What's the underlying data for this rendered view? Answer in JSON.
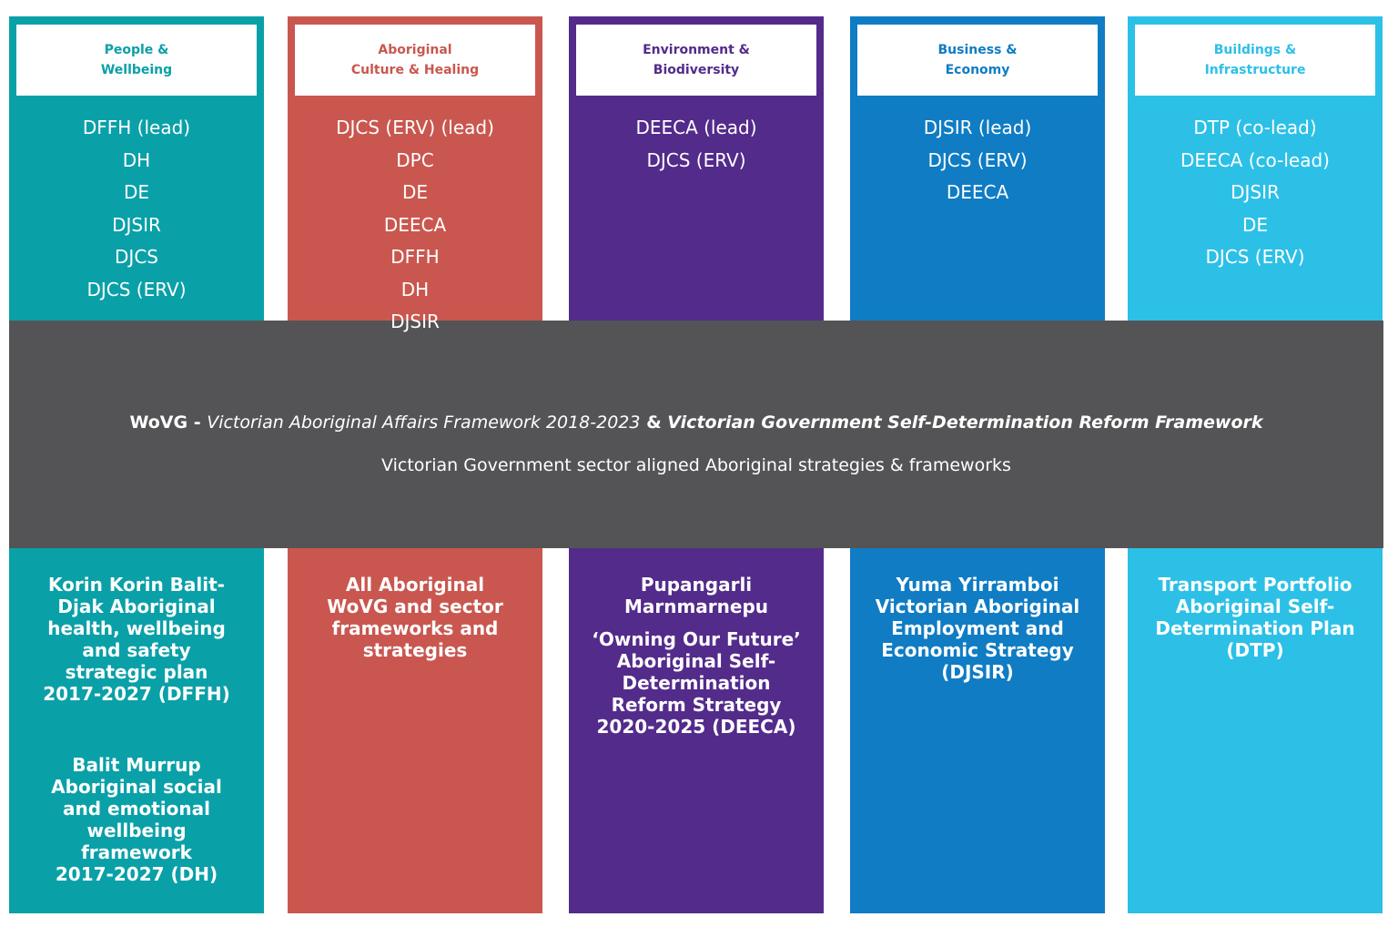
{
  "columns": [
    {
      "header": [
        "People &",
        "Wellbeing"
      ],
      "departments": [
        "DFFH (lead)",
        "DH",
        "DE",
        "DJSIR",
        "DJCS",
        "DJCS (ERV)"
      ],
      "strategies": [
        [
          "Korin Korin Balit-",
          "Djak Aboriginal",
          "health, wellbeing",
          "and safety",
          "strategic plan",
          "2017-2027 (DFFH)"
        ],
        [
          "Balit Murrup",
          "Aboriginal social",
          "and emotional",
          "wellbeing",
          "framework",
          "2017-2027 (DH)"
        ]
      ]
    },
    {
      "header": [
        "Aboriginal",
        "Culture & Healing"
      ],
      "departments": [
        "DJCS (ERV) (lead)",
        "DPC",
        "DE",
        "DEECA",
        "DFFH",
        "DH",
        "DJSIR"
      ],
      "strategies": [
        [
          "All Aboriginal",
          "WoVG and sector",
          "frameworks and",
          "strategies"
        ]
      ]
    },
    {
      "header": [
        "Environment &",
        "Biodiversity"
      ],
      "departments": [
        "DEECA (lead)",
        "DJCS (ERV)"
      ],
      "strategies": [
        [
          "Pupangarli",
          "Marnmarnepu"
        ],
        [
          "‘Owning Our Future’",
          "Aboriginal Self-",
          "Determination",
          "Reform Strategy",
          "2020-2025 (DEECA)"
        ]
      ]
    },
    {
      "header": [
        "Business &",
        "Economy"
      ],
      "departments": [
        "DJSIR (lead)",
        "DJCS (ERV)",
        "DEECA"
      ],
      "strategies": [
        [
          "Yuma Yirramboi",
          "Victorian Aboriginal",
          "Employment and",
          "Economic Strategy",
          "(DJSIR)"
        ]
      ]
    },
    {
      "header": [
        "Buildings &",
        "Infrastructure"
      ],
      "departments": [
        "DTP (co-lead)",
        "DEECA (co-lead)",
        "DJSIR",
        "DE",
        "DJCS (ERV)"
      ],
      "strategies": [
        [
          "Transport Portfolio",
          "Aboriginal Self-",
          "Determination Plan",
          "(DTP)"
        ]
      ]
    }
  ],
  "band": {
    "prefix": "WoVG - ",
    "framework_1": "Victorian Aboriginal Affairs Framework 2018-2023",
    "joiner": " & ",
    "framework_2": "Victorian Government Self-Determination Reform Framework",
    "line_2": "Victorian Government sector aligned Aboriginal strategies & frameworks"
  }
}
